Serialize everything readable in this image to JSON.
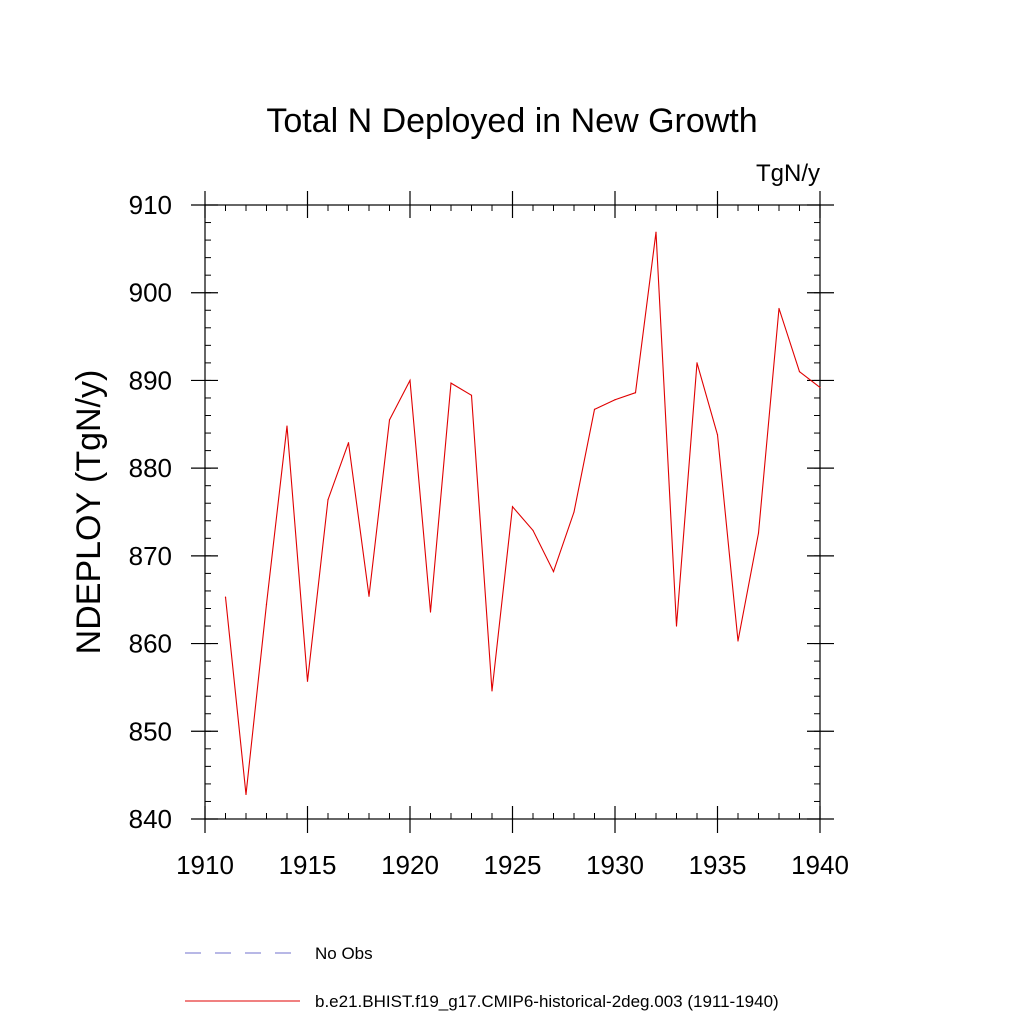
{
  "chart_data": {
    "type": "line",
    "title": "Total N Deployed in New Growth",
    "units_label": "TgN/y",
    "ylabel": "NDEPLOY  (TgN/y)",
    "xlabel": "",
    "xlim": [
      1910,
      1940
    ],
    "ylim": [
      840,
      910
    ],
    "x_ticks": [
      1910,
      1915,
      1920,
      1925,
      1930,
      1935,
      1940
    ],
    "y_ticks": [
      840,
      850,
      860,
      870,
      880,
      890,
      900,
      910
    ],
    "grid": false,
    "legend_position": "bottom",
    "series": [
      {
        "name": "b.e21.BHIST.f19_g17.CMIP6-historical-2deg.003 (1911-1940)",
        "color": "#e00000",
        "dash": "solid",
        "x": [
          1911,
          1912,
          1913,
          1914,
          1915,
          1916,
          1917,
          1918,
          1919,
          1920,
          1921,
          1922,
          1923,
          1924,
          1925,
          1926,
          1927,
          1928,
          1929,
          1930,
          1931,
          1932,
          1933,
          1934,
          1935,
          1936,
          1937,
          1938,
          1939,
          1940
        ],
        "y": [
          865.3,
          842.8,
          864.5,
          884.8,
          855.7,
          876.4,
          882.9,
          865.4,
          885.5,
          890.0,
          863.6,
          889.7,
          888.3,
          854.6,
          875.6,
          872.9,
          868.2,
          875.0,
          886.7,
          887.8,
          888.6,
          906.9,
          862.0,
          892.0,
          883.8,
          860.3,
          872.6,
          898.2,
          891.0,
          889.2
        ]
      }
    ],
    "legend": [
      {
        "label": "No Obs",
        "color": "#7070cc",
        "dash": "dashed"
      },
      {
        "label": "b.e21.BHIST.f19_g17.CMIP6-historical-2deg.003 (1911-1940)",
        "color": "#e00000",
        "dash": "solid"
      }
    ]
  }
}
